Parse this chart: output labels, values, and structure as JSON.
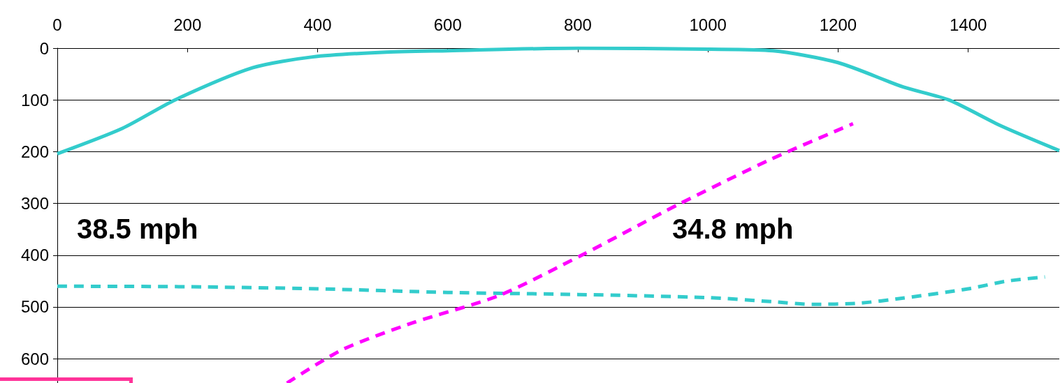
{
  "chart_data": {
    "type": "line",
    "xlim": [
      0,
      1540
    ],
    "xticks": [
      0,
      200,
      400,
      600,
      800,
      1000,
      1200,
      1400
    ],
    "ylim": [
      647,
      0
    ],
    "yticks": [
      0,
      100,
      200,
      300,
      400,
      500,
      600
    ],
    "grid": "y",
    "marker": "none",
    "series": [
      {
        "color": "#33cccc",
        "line_style": "solid",
        "x": [
          0,
          100,
          181,
          300,
          392,
          500,
          600,
          800,
          1000,
          1100,
          1200,
          1300,
          1370,
          1450,
          1540
        ],
        "values": [
          204,
          155,
          100,
          38,
          17,
          8,
          5,
          0,
          2,
          5,
          28,
          75,
          100,
          150,
          198
        ]
      },
      {
        "color": "#33cccc",
        "line_style": "dashed",
        "x": [
          0,
          200,
          400,
          600,
          800,
          1000,
          1100,
          1160,
          1230,
          1300,
          1400,
          1460,
          1518
        ],
        "values": [
          460,
          461,
          465,
          472,
          476,
          482,
          490,
          495,
          493,
          483,
          465,
          450,
          442
        ]
      },
      {
        "color": "#ff00ff",
        "line_style": "dashed",
        "x": [
          353,
          439,
          548,
          679,
          806,
          953,
          1098,
          1223
        ],
        "values": [
          647,
          582,
          530,
          478,
          400,
          303,
          214,
          146
        ]
      }
    ],
    "annotations": [
      "38.5 mph",
      "34.8 mph"
    ]
  }
}
